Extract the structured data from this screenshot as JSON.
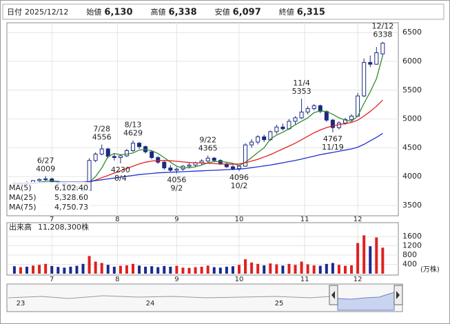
{
  "header": {
    "items": [
      {
        "label": "日付",
        "value": "2025/12/12",
        "color": "#222222"
      },
      {
        "label": "始値",
        "value": "6,130",
        "color": "#222222"
      },
      {
        "label": "高値",
        "value": "6,338",
        "color": "#e00000"
      },
      {
        "label": "安値",
        "value": "6,097",
        "color": "#008000"
      },
      {
        "label": "終値",
        "value": "6,315",
        "color": "#222222"
      }
    ]
  },
  "chart_data": {
    "type": "candlestick",
    "ylim": [
      3320,
      6670
    ],
    "yticks": [
      3500,
      4000,
      4500,
      5000,
      5500,
      6000,
      6500
    ],
    "grid": true,
    "xlim": [
      -1.2,
      61.5
    ],
    "xticks": [
      {
        "value": 6,
        "label": "7"
      },
      {
        "value": 16.5,
        "label": "8"
      },
      {
        "value": 26,
        "label": "9"
      },
      {
        "value": 36,
        "label": "10"
      },
      {
        "value": 46.5,
        "label": "11"
      },
      {
        "value": 55,
        "label": "12"
      }
    ],
    "up_color": "#ffffff",
    "down_color": "#1a2a80",
    "edge_color": "#1a2a80",
    "candles": [
      {
        "open": 3880,
        "high": 3910,
        "low": 3850,
        "close": 3870
      },
      {
        "open": 3870,
        "high": 3900,
        "low": 3840,
        "close": 3890
      },
      {
        "open": 3890,
        "high": 3920,
        "low": 3860,
        "close": 3880
      },
      {
        "open": 3880,
        "high": 3940,
        "low": 3870,
        "close": 3930
      },
      {
        "open": 3930,
        "high": 3970,
        "low": 3900,
        "close": 3950
      },
      {
        "open": 3950,
        "high": 4009,
        "low": 3920,
        "close": 3960
      },
      {
        "open": 3960,
        "high": 3980,
        "low": 3900,
        "close": 3910
      },
      {
        "open": 3910,
        "high": 3930,
        "low": 3860,
        "close": 3880
      },
      {
        "open": 3880,
        "high": 3900,
        "low": 3840,
        "close": 3850
      },
      {
        "open": 3850,
        "high": 3870,
        "low": 3800,
        "close": 3820
      },
      {
        "open": 3820,
        "high": 3840,
        "low": 3760,
        "close": 3790
      },
      {
        "open": 3790,
        "high": 3810,
        "low": 3719,
        "close": 3760
      },
      {
        "open": 3760,
        "high": 4320,
        "low": 3750,
        "close": 4280
      },
      {
        "open": 4280,
        "high": 4420,
        "low": 4250,
        "close": 4390
      },
      {
        "open": 4390,
        "high": 4556,
        "low": 4370,
        "close": 4480
      },
      {
        "open": 4480,
        "high": 4500,
        "low": 4320,
        "close": 4350
      },
      {
        "open": 4350,
        "high": 4400,
        "low": 4280,
        "close": 4330
      },
      {
        "open": 4330,
        "high": 4380,
        "low": 4230,
        "close": 4360
      },
      {
        "open": 4360,
        "high": 4480,
        "low": 4340,
        "close": 4450
      },
      {
        "open": 4450,
        "high": 4629,
        "low": 4430,
        "close": 4580
      },
      {
        "open": 4580,
        "high": 4600,
        "low": 4480,
        "close": 4520
      },
      {
        "open": 4520,
        "high": 4540,
        "low": 4400,
        "close": 4430
      },
      {
        "open": 4430,
        "high": 4460,
        "low": 4300,
        "close": 4330
      },
      {
        "open": 4330,
        "high": 4360,
        "low": 4220,
        "close": 4250
      },
      {
        "open": 4250,
        "high": 4280,
        "low": 4120,
        "close": 4150
      },
      {
        "open": 4150,
        "high": 4200,
        "low": 4080,
        "close": 4110
      },
      {
        "open": 4110,
        "high": 4160,
        "low": 4056,
        "close": 4130
      },
      {
        "open": 4130,
        "high": 4200,
        "low": 4100,
        "close": 4180
      },
      {
        "open": 4180,
        "high": 4235,
        "low": 4140,
        "close": 4200
      },
      {
        "open": 4200,
        "high": 4260,
        "low": 4170,
        "close": 4240
      },
      {
        "open": 4240,
        "high": 4300,
        "low": 4200,
        "close": 4270
      },
      {
        "open": 4270,
        "high": 4365,
        "low": 4250,
        "close": 4320
      },
      {
        "open": 4320,
        "high": 4340,
        "low": 4250,
        "close": 4280
      },
      {
        "open": 4280,
        "high": 4300,
        "low": 4200,
        "close": 4220
      },
      {
        "open": 4220,
        "high": 4240,
        "low": 4150,
        "close": 4170
      },
      {
        "open": 4170,
        "high": 4200,
        "low": 4110,
        "close": 4140
      },
      {
        "open": 4140,
        "high": 4200,
        "low": 4096,
        "close": 4180
      },
      {
        "open": 4180,
        "high": 4580,
        "low": 4170,
        "close": 4550
      },
      {
        "open": 4550,
        "high": 4650,
        "low": 4500,
        "close": 4600
      },
      {
        "open": 4600,
        "high": 4720,
        "low": 4560,
        "close": 4690
      },
      {
        "open": 4690,
        "high": 4730,
        "low": 4600,
        "close": 4640
      },
      {
        "open": 4640,
        "high": 4800,
        "low": 4620,
        "close": 4780
      },
      {
        "open": 4780,
        "high": 4900,
        "low": 4740,
        "close": 4860
      },
      {
        "open": 4860,
        "high": 4920,
        "low": 4800,
        "close": 4830
      },
      {
        "open": 4830,
        "high": 5000,
        "low": 4810,
        "close": 4960
      },
      {
        "open": 4960,
        "high": 5050,
        "low": 4900,
        "close": 5020
      },
      {
        "open": 5020,
        "high": 5353,
        "low": 5000,
        "close": 5120
      },
      {
        "open": 5120,
        "high": 5220,
        "low": 5080,
        "close": 5180
      },
      {
        "open": 5180,
        "high": 5260,
        "low": 5150,
        "close": 5230
      },
      {
        "open": 5230,
        "high": 5250,
        "low": 5100,
        "close": 5130
      },
      {
        "open": 5130,
        "high": 5150,
        "low": 4950,
        "close": 4980
      },
      {
        "open": 4980,
        "high": 5000,
        "low": 4767,
        "close": 4850
      },
      {
        "open": 4850,
        "high": 4960,
        "low": 4820,
        "close": 4930
      },
      {
        "open": 4930,
        "high": 5020,
        "low": 4900,
        "close": 4990
      },
      {
        "open": 4990,
        "high": 5080,
        "low": 4960,
        "close": 5050
      },
      {
        "open": 5050,
        "high": 5450,
        "low": 5040,
        "close": 5400
      },
      {
        "open": 5400,
        "high": 6050,
        "low": 5380,
        "close": 5980
      },
      {
        "open": 5980,
        "high": 6100,
        "low": 5900,
        "close": 5950
      },
      {
        "open": 5950,
        "high": 6250,
        "low": 5940,
        "close": 6150
      },
      {
        "open": 6130,
        "high": 6338,
        "low": 6097,
        "close": 6315
      }
    ],
    "series": [
      {
        "name": "MA(5)",
        "color": "#2e8b2e",
        "value_label": "6,102.40",
        "values": [
          3890,
          3885,
          3880,
          3885,
          3900,
          3920,
          3925,
          3915,
          3890,
          3860,
          3830,
          3800,
          3900,
          4000,
          4150,
          4350,
          4400,
          4380,
          4390,
          4410,
          4460,
          4470,
          4450,
          4400,
          4330,
          4250,
          4180,
          4150,
          4155,
          4170,
          4200,
          4240,
          4260,
          4260,
          4250,
          4230,
          4190,
          4250,
          4330,
          4420,
          4500,
          4650,
          4720,
          4770,
          4830,
          4900,
          4960,
          5020,
          5110,
          5140,
          5130,
          5080,
          5020,
          4980,
          4960,
          5050,
          5270,
          5470,
          5700,
          6102.4
        ]
      },
      {
        "name": "MA(25)",
        "color": "#e02020",
        "value_label": "5,328.60",
        "values": [
          null,
          null,
          null,
          null,
          null,
          null,
          null,
          null,
          null,
          null,
          3880,
          3870,
          3900,
          3940,
          3980,
          4020,
          4060,
          4100,
          4140,
          4180,
          4220,
          4250,
          4270,
          4280,
          4280,
          4275,
          4265,
          4255,
          4245,
          4240,
          4235,
          4230,
          4225,
          4220,
          4215,
          4215,
          4220,
          4240,
          4270,
          4300,
          4340,
          4380,
          4430,
          4480,
          4530,
          4580,
          4640,
          4700,
          4760,
          4810,
          4850,
          4880,
          4900,
          4920,
          4940,
          4980,
          5050,
          5130,
          5220,
          5328.6
        ]
      },
      {
        "name": "MA(75)",
        "color": "#2030d0",
        "value_label": "4,750.73",
        "values": [
          3870,
          3875,
          3880,
          3885,
          3890,
          3895,
          3900,
          3905,
          3905,
          3905,
          3905,
          3905,
          3915,
          3930,
          3945,
          3960,
          3975,
          3990,
          4005,
          4020,
          4035,
          4045,
          4055,
          4065,
          4070,
          4075,
          4080,
          4085,
          4090,
          4095,
          4100,
          4105,
          4110,
          4115,
          4120,
          4125,
          4130,
          4140,
          4155,
          4170,
          4185,
          4200,
          4220,
          4240,
          4260,
          4280,
          4305,
          4330,
          4355,
          4380,
          4400,
          4420,
          4440,
          4460,
          4480,
          4510,
          4560,
          4620,
          4680,
          4750.73
        ]
      }
    ],
    "annotations": [
      {
        "date": "6/27",
        "value": 4009
      },
      {
        "date": "7/28",
        "value": 4556
      },
      {
        "date": "8/4",
        "value": 4230
      },
      {
        "date": "8/13",
        "value": 4629
      },
      {
        "date": "9/2",
        "value": 4056
      },
      {
        "date": "9/22",
        "value": 4365
      },
      {
        "date": "10/2",
        "value": 4096
      },
      {
        "date": "11/4",
        "value": 5353
      },
      {
        "date": "11/19",
        "value": 4767
      },
      {
        "date": "12/12",
        "value": 6338
      }
    ],
    "volume": {
      "title": "出来高",
      "latest": "11,208,300株",
      "unit": "(万株)",
      "up_color": "#e02020",
      "down_color": "#1a2a90",
      "ylim": [
        0,
        1780
      ],
      "yticks": [
        400,
        800,
        1200,
        1600
      ],
      "values": [
        320,
        280,
        300,
        350,
        380,
        420,
        330,
        290,
        260,
        300,
        340,
        420,
        760,
        520,
        460,
        380,
        300,
        340,
        360,
        420,
        350,
        300,
        320,
        280,
        330,
        300,
        340,
        260,
        250,
        280,
        300,
        350,
        280,
        260,
        300,
        320,
        380,
        620,
        480,
        420,
        360,
        440,
        400,
        350,
        420,
        380,
        520,
        400,
        360,
        340,
        420,
        460,
        380,
        340,
        360,
        1320,
        1650,
        1180,
        1560,
        1120.83
      ]
    }
  },
  "navigator": {
    "labels": [
      "23",
      "24",
      "25"
    ]
  }
}
